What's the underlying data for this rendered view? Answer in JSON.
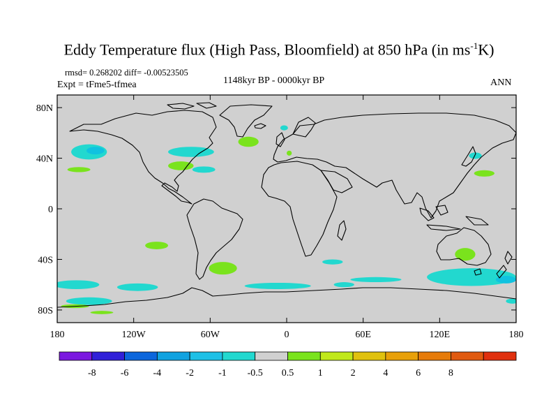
{
  "title": {
    "prefix": "Eddy Temperature flux (High Pass, Bloomfield) at 850 hPa (in ms",
    "sup": "-1",
    "suffix": "K)"
  },
  "stats": "rmsd= 0.268202 diff= -0.00523505",
  "experiment": "Expt = tFme5-tfmea",
  "period": "1148kyr BP - 0000kyr BP",
  "season": "ANN",
  "map": {
    "type": "contour-map",
    "projection": "cylindrical equidistant",
    "lon_range": [
      -180,
      180
    ],
    "lat_range": [
      -90,
      90
    ],
    "background_color": "#d0d0d0",
    "xticks": [
      {
        "lon": -180,
        "label": "180"
      },
      {
        "lon": -120,
        "label": "120W"
      },
      {
        "lon": -60,
        "label": "60W"
      },
      {
        "lon": 0,
        "label": "0"
      },
      {
        "lon": 60,
        "label": "60E"
      },
      {
        "lon": 120,
        "label": "120E"
      },
      {
        "lon": 180,
        "label": "180"
      }
    ],
    "yticks": [
      {
        "lat": 80,
        "label": "80N"
      },
      {
        "lat": 40,
        "label": "40N"
      },
      {
        "lat": 0,
        "label": "0"
      },
      {
        "lat": -40,
        "label": "40S"
      },
      {
        "lat": -80,
        "label": "80S"
      }
    ],
    "anomaly_regions": [
      {
        "name": "north-pacific-neg",
        "lon": -155,
        "lat": 45,
        "rlon": 14,
        "rlat": 6,
        "color": "#22d8cf"
      },
      {
        "name": "north-pacific-neg-inner",
        "lon": -150,
        "lat": 46,
        "rlon": 7,
        "rlat": 3,
        "color": "#10c2e0"
      },
      {
        "name": "west-pacific-pos",
        "lon": -163,
        "lat": 31,
        "rlon": 9,
        "rlat": 2,
        "color": "#7ae31d"
      },
      {
        "name": "great-lakes-neg",
        "lon": -75,
        "lat": 45,
        "rlon": 18,
        "rlat": 4,
        "color": "#22d8cf"
      },
      {
        "name": "us-east-pos",
        "lon": -83,
        "lat": 34,
        "rlon": 10,
        "rlat": 3.5,
        "color": "#7ae31d"
      },
      {
        "name": "gulf-stream-neg",
        "lon": -65,
        "lat": 31,
        "rlon": 9,
        "rlat": 2.5,
        "color": "#22d8cf"
      },
      {
        "name": "north-atlantic-pos",
        "lon": -30,
        "lat": 53,
        "rlon": 8,
        "rlat": 4,
        "color": "#7ae31d"
      },
      {
        "name": "greenland-neg",
        "lon": -2,
        "lat": 64,
        "rlon": 3,
        "rlat": 2,
        "color": "#22d8cf"
      },
      {
        "name": "med-pos",
        "lon": 2,
        "lat": 44,
        "rlon": 2,
        "rlat": 2,
        "color": "#7ae31d"
      },
      {
        "name": "japan-neg",
        "lon": 148,
        "lat": 42,
        "rlon": 5,
        "rlat": 2.5,
        "color": "#22d8cf"
      },
      {
        "name": "nw-pacific-pos",
        "lon": 155,
        "lat": 28,
        "rlon": 8,
        "rlat": 2.5,
        "color": "#7ae31d"
      },
      {
        "name": "se-pacific-pos",
        "lon": -102,
        "lat": -29,
        "rlon": 9,
        "rlat": 3,
        "color": "#7ae31d"
      },
      {
        "name": "s-indian-neg",
        "lon": 36,
        "lat": -42,
        "rlon": 8,
        "rlat": 2,
        "color": "#22d8cf"
      },
      {
        "name": "australia-pos",
        "lon": 140,
        "lat": -36,
        "rlon": 8,
        "rlat": 5,
        "color": "#7ae31d"
      },
      {
        "name": "s-atlantic-pos",
        "lon": -50,
        "lat": -47,
        "rlon": 11,
        "rlat": 5,
        "color": "#7ae31d"
      },
      {
        "name": "so-neg-1",
        "lon": -165,
        "lat": -60,
        "rlon": 18,
        "rlat": 3.5,
        "color": "#22d8cf"
      },
      {
        "name": "so-neg-2",
        "lon": -117,
        "lat": -62,
        "rlon": 16,
        "rlat": 3,
        "color": "#22d8cf"
      },
      {
        "name": "so-neg-3",
        "lon": -7,
        "lat": -61,
        "rlon": 26,
        "rlat": 2.5,
        "color": "#22d8cf"
      },
      {
        "name": "so-neg-4",
        "lon": 45,
        "lat": -60,
        "rlon": 8,
        "rlat": 2,
        "color": "#22d8cf"
      },
      {
        "name": "so-neg-5",
        "lon": 70,
        "lat": -56,
        "rlon": 20,
        "rlat": 2,
        "color": "#22d8cf"
      },
      {
        "name": "so-neg-6",
        "lon": 145,
        "lat": -54,
        "rlon": 35,
        "rlat": 7,
        "color": "#22d8cf"
      },
      {
        "name": "so-neg-6-inner",
        "lon": 172,
        "lat": -56,
        "rlon": 8,
        "rlat": 3,
        "color": "#10c2e0"
      },
      {
        "name": "antarctic-neg-1",
        "lon": -155,
        "lat": -73,
        "rlon": 18,
        "rlat": 3,
        "color": "#22d8cf"
      },
      {
        "name": "antarctic-pos-1",
        "lon": -166,
        "lat": -77,
        "rlon": 11,
        "rlat": 1.5,
        "color": "#7ae31d"
      },
      {
        "name": "antarctic-pos-2",
        "lon": -145,
        "lat": -82,
        "rlon": 9,
        "rlat": 1.3,
        "color": "#7ae31d"
      },
      {
        "name": "antarctic-neg-2",
        "lon": 177,
        "lat": -73,
        "rlon": 5,
        "rlat": 2,
        "color": "#22d8cf"
      }
    ]
  },
  "colorbar": {
    "colors": [
      "#7b18e0",
      "#3020d8",
      "#0c66dc",
      "#10a2e0",
      "#1ec0e6",
      "#22d8cf",
      "#d0d0d0",
      "#7ae31d",
      "#c0e81a",
      "#e0c10e",
      "#e8a00a",
      "#e67b0a",
      "#e05a10",
      "#e0300e"
    ],
    "labels": [
      "-8",
      "-6",
      "-4",
      "-2",
      "-1",
      "-0.5",
      "0.5",
      "1",
      "2",
      "4",
      "6",
      "8"
    ]
  }
}
